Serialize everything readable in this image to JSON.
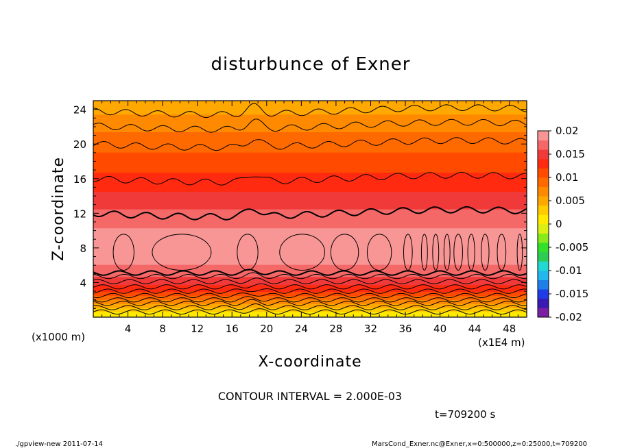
{
  "chart_data": {
    "type": "heatmap",
    "title": "disturbunce of Exner",
    "xlabel": "X-coordinate",
    "ylabel": "Z-coordinate",
    "x_unit": "(x1E4 m)",
    "y_unit": "(x1000 m)",
    "xlim": [
      0,
      50
    ],
    "ylim": [
      0,
      25
    ],
    "x_ticks": [
      "4",
      "8",
      "12",
      "16",
      "20",
      "24",
      "28",
      "32",
      "36",
      "40",
      "44",
      "48"
    ],
    "y_ticks": [
      "4",
      "8",
      "12",
      "16",
      "20",
      "24"
    ],
    "colorbar": {
      "levels": [
        -0.02,
        0.02
      ],
      "labels": [
        "0.02",
        "0.015",
        "0.01",
        "0.005",
        "0",
        "-0.005",
        "-0.01",
        "-0.015",
        "-0.02"
      ],
      "colors": [
        "#7b1fa2",
        "#3a1ab3",
        "#1f3ce6",
        "#1e7fe8",
        "#22b8ee",
        "#22d8d2",
        "#2fcc55",
        "#33e02a",
        "#88ea1a",
        "#dcef14",
        "#ffea00",
        "#ffcc00",
        "#ffa800",
        "#ff8a00",
        "#ff6a00",
        "#ff4a00",
        "#ff2a10",
        "#f03a3a",
        "#f46868",
        "#f89696"
      ]
    },
    "profile": {
      "z": [
        0.2,
        0.8,
        1.5,
        2.2,
        3.0,
        4.0,
        5.0,
        6.5,
        8.0,
        9.5,
        11.0,
        12.5,
        14.0,
        16.0,
        18.0,
        20.0,
        22.0,
        23.5,
        24.8
      ],
      "values": [
        0.0005,
        0.003,
        0.006,
        0.009,
        0.012,
        0.0145,
        0.0165,
        0.0185,
        0.0195,
        0.0185,
        0.0175,
        0.016,
        0.0145,
        0.0125,
        0.011,
        0.009,
        0.0075,
        0.006,
        0.0045
      ]
    },
    "contour_interval": "CONTOUR INTERVAL = 2.000E-03",
    "time_label": "t=709200 s"
  },
  "footer": {
    "left": "./gpview-new   2011-07-14",
    "right": "MarsCond_Exner.nc@Exner,x=0:500000,z=0:25000,t=709200"
  }
}
